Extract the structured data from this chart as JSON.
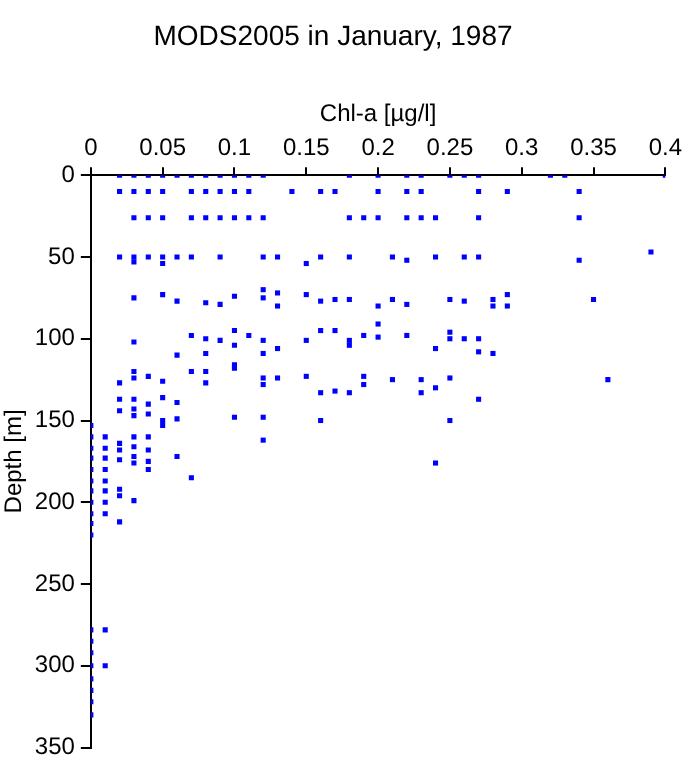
{
  "chart_data": {
    "type": "scatter",
    "title": "MODS2005 in January, 1987",
    "xlabel": "Chl-a [µg/l]",
    "ylabel": "Depth [m]",
    "xlim": [
      0,
      0.4
    ],
    "xticks": [
      0,
      0.05,
      0.1,
      0.15,
      0.2,
      0.25,
      0.3,
      0.35,
      0.4
    ],
    "ylim": [
      350,
      0
    ],
    "yticks": [
      0,
      50,
      100,
      150,
      200,
      250,
      300,
      350
    ],
    "grid": false,
    "legend": false,
    "marker": "square",
    "series": [
      {
        "color": "#0000ff",
        "x": [
          0.02,
          0.03,
          0.04,
          0.05,
          0.06,
          0.07,
          0.08,
          0.09,
          0.1,
          0.11,
          0.12,
          0.18,
          0.2,
          0.22,
          0.23,
          0.25,
          0.26,
          0.27,
          0.32,
          0.33,
          0.4,
          0.02,
          0.03,
          0.04,
          0.05,
          0.07,
          0.08,
          0.09,
          0.1,
          0.11,
          0.14,
          0.16,
          0.17,
          0.2,
          0.22,
          0.23,
          0.27,
          0.29,
          0.34,
          0.03,
          0.04,
          0.05,
          0.07,
          0.08,
          0.09,
          0.1,
          0.11,
          0.12,
          0.18,
          0.19,
          0.2,
          0.22,
          0.23,
          0.24,
          0.27,
          0.34,
          0.02,
          0.03,
          0.04,
          0.05,
          0.06,
          0.07,
          0.09,
          0.12,
          0.13,
          0.16,
          0.18,
          0.21,
          0.24,
          0.26,
          0.27,
          0.15,
          0.22,
          0.34,
          0.39,
          0.05,
          0.03,
          0.03,
          0.05,
          0.06,
          0.08,
          0.09,
          0.1,
          0.12,
          0.12,
          0.13,
          0.13,
          0.15,
          0.16,
          0.17,
          0.18,
          0.2,
          0.21,
          0.22,
          0.25,
          0.26,
          0.28,
          0.28,
          0.29,
          0.29,
          0.35,
          0.03,
          0.07,
          0.08,
          0.09,
          0.1,
          0.1,
          0.11,
          0.12,
          0.13,
          0.15,
          0.16,
          0.17,
          0.18,
          0.18,
          0.19,
          0.2,
          0.2,
          0.22,
          0.24,
          0.25,
          0.25,
          0.26,
          0.27,
          0.27,
          0.28,
          0.06,
          0.08,
          0.12,
          0.02,
          0.03,
          0.03,
          0.04,
          0.05,
          0.07,
          0.08,
          0.08,
          0.1,
          0.1,
          0.12,
          0.12,
          0.13,
          0.15,
          0.16,
          0.17,
          0.18,
          0.19,
          0.19,
          0.21,
          0.23,
          0.23,
          0.24,
          0.25,
          0.27,
          0.36,
          0.02,
          0.02,
          0.03,
          0.03,
          0.03,
          0.04,
          0.04,
          0.05,
          0.05,
          0.06,
          0.06,
          0.1,
          0.12,
          0.12,
          0.16,
          0.25,
          0.24,
          0,
          0,
          0,
          0,
          0,
          0,
          0,
          0,
          0,
          0,
          0,
          0,
          0,
          0,
          0,
          0,
          0,
          0,
          0,
          0.01,
          0.01,
          0.01,
          0.01,
          0.01,
          0.01,
          0.01,
          0.01,
          0.01,
          0.01,
          0.02,
          0.02,
          0.02,
          0.02,
          0.02,
          0.02,
          0.03,
          0.03,
          0.03,
          0.03,
          0.03,
          0.04,
          0.04,
          0.04,
          0.04,
          0.05,
          0.06,
          0.07
        ],
        "values": [
          0,
          0,
          0,
          0,
          0,
          0,
          0,
          0,
          0,
          0,
          0,
          0,
          0,
          0,
          0,
          0,
          0,
          0,
          0,
          0,
          0,
          10,
          10,
          10,
          10,
          10,
          10,
          10,
          10,
          10,
          10,
          10,
          10,
          10,
          10,
          10,
          10,
          10,
          10,
          26,
          26,
          26,
          26,
          26,
          26,
          26,
          26,
          26,
          26,
          26,
          26,
          26,
          26,
          26,
          26,
          26,
          50,
          50,
          50,
          50,
          50,
          50,
          50,
          50,
          50,
          50,
          50,
          50,
          50,
          50,
          50,
          54,
          52,
          52,
          47,
          54,
          53,
          75,
          73,
          77,
          78,
          79,
          74,
          70,
          75,
          72,
          80,
          73,
          77,
          76,
          76,
          80,
          76,
          79,
          76,
          77,
          76,
          80,
          73,
          80,
          76,
          102,
          98,
          100,
          101,
          95,
          104,
          98,
          101,
          106,
          101,
          95,
          95,
          101,
          104,
          98,
          91,
          99,
          98,
          106,
          96,
          100,
          100,
          100,
          108,
          109,
          110,
          109,
          109,
          127,
          120,
          124,
          123,
          126,
          120,
          120,
          127,
          116,
          118,
          124,
          128,
          124,
          123,
          133,
          132,
          133,
          123,
          128,
          125,
          125,
          133,
          130,
          124,
          137,
          125,
          137,
          144,
          137,
          143,
          147,
          140,
          146,
          136,
          150,
          139,
          149,
          148,
          148,
          162,
          150,
          150,
          176,
          153,
          160,
          167,
          173,
          180,
          187,
          193,
          200,
          207,
          213,
          220,
          278,
          285,
          292,
          300,
          308,
          315,
          322,
          330,
          160,
          167,
          173,
          180,
          187,
          193,
          200,
          207,
          278,
          300,
          164,
          168,
          174,
          192,
          196,
          212,
          160,
          166,
          172,
          176,
          199,
          160,
          168,
          175,
          180,
          153,
          172,
          185
        ]
      }
    ]
  }
}
